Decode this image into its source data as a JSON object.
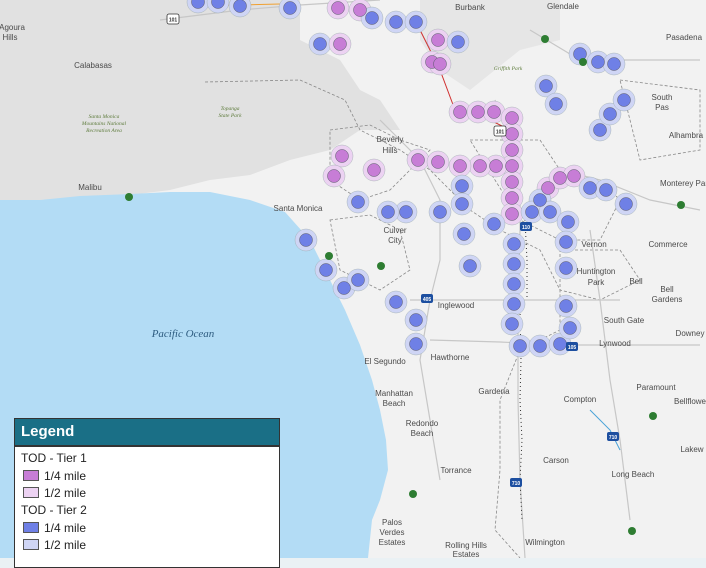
{
  "map": {
    "places": [
      {
        "id": "burbank",
        "text": "Burbank"
      },
      {
        "id": "glendale",
        "text": "Glendale"
      },
      {
        "id": "pasadena",
        "text": "Pasadena"
      },
      {
        "id": "agoura",
        "text": "Agoura"
      },
      {
        "id": "hills",
        "text": "Hills"
      },
      {
        "id": "calabasas",
        "text": "Calabasas"
      },
      {
        "id": "malibu",
        "text": "Malibu"
      },
      {
        "id": "beverly",
        "text": "Beverly"
      },
      {
        "id": "hills2",
        "text": "Hills"
      },
      {
        "id": "santamonica",
        "text": "Santa Monica"
      },
      {
        "id": "culver",
        "text": "Culver"
      },
      {
        "id": "city",
        "text": "City"
      },
      {
        "id": "southpas1",
        "text": "South"
      },
      {
        "id": "southpas2",
        "text": "Pas"
      },
      {
        "id": "alhambra",
        "text": "Alhambra"
      },
      {
        "id": "montereypark",
        "text": "Monterey Park"
      },
      {
        "id": "vernon",
        "text": "Vernon"
      },
      {
        "id": "commerce",
        "text": "Commerce"
      },
      {
        "id": "huntington",
        "text": "Huntington"
      },
      {
        "id": "park",
        "text": "Park"
      },
      {
        "id": "bell",
        "text": "Bell"
      },
      {
        "id": "bellgardens1",
        "text": "Bell"
      },
      {
        "id": "bellgardens2",
        "text": "Gardens"
      },
      {
        "id": "inglewood",
        "text": "Inglewood"
      },
      {
        "id": "southgate",
        "text": "South Gate"
      },
      {
        "id": "downey",
        "text": "Downey"
      },
      {
        "id": "lynwood",
        "text": "Lynwood"
      },
      {
        "id": "hawthorne",
        "text": "Hawthorne"
      },
      {
        "id": "elsegundo",
        "text": "El Segundo"
      },
      {
        "id": "manhattan",
        "text": "Manhattan"
      },
      {
        "id": "beach",
        "text": "Beach"
      },
      {
        "id": "gardena",
        "text": "Gardena"
      },
      {
        "id": "paramount",
        "text": "Paramount"
      },
      {
        "id": "bellflower",
        "text": "Bellflowe"
      },
      {
        "id": "compton",
        "text": "Compton"
      },
      {
        "id": "redondo",
        "text": "Redondo"
      },
      {
        "id": "beach2",
        "text": "Beach"
      },
      {
        "id": "carson",
        "text": "Carson"
      },
      {
        "id": "torrance",
        "text": "Torrance"
      },
      {
        "id": "longbeach",
        "text": "Long Beach"
      },
      {
        "id": "lakewood",
        "text": "Lakew"
      },
      {
        "id": "palos1",
        "text": "Palos"
      },
      {
        "id": "palos2",
        "text": "Verdes"
      },
      {
        "id": "palos3",
        "text": "Estates"
      },
      {
        "id": "rolling1",
        "text": "Rolling Hills"
      },
      {
        "id": "rolling2",
        "text": "Estates"
      },
      {
        "id": "wilmington",
        "text": "Wilmington"
      }
    ],
    "parks": [
      {
        "id": "santamonicamtns1",
        "text": "Santa Monica"
      },
      {
        "id": "santamonicamtns2",
        "text": "Mountains National"
      },
      {
        "id": "santamonicamtns3",
        "text": "Recreation Area"
      },
      {
        "id": "topanga1",
        "text": "Topanga"
      },
      {
        "id": "topanga2",
        "text": "State Park"
      },
      {
        "id": "griffith",
        "text": "Griffith Park"
      }
    ],
    "water": {
      "ocean": "Pacific Ocean"
    },
    "shields": [
      {
        "id": "us101a",
        "text": "101"
      },
      {
        "id": "us101b",
        "text": "101"
      },
      {
        "id": "i405",
        "text": "405"
      },
      {
        "id": "i110",
        "text": "110"
      },
      {
        "id": "i105",
        "text": "105"
      },
      {
        "id": "i710",
        "text": "710"
      },
      {
        "id": "i710b",
        "text": "710"
      }
    ],
    "colors": {
      "land": "#f2f2f2",
      "water": "#b3dcf5",
      "mountains": "#e1e1e1",
      "tier1": "#c77dd6",
      "tier1_half": "#ecd2f2",
      "tier2": "#6f80e6",
      "tier2_half": "#cfd5f5"
    }
  },
  "legend": {
    "title": "Legend",
    "tier1_label": "TOD - Tier 1",
    "tier1_quarter": "1/4 mile",
    "tier1_half": "1/2 mile",
    "tier2_label": "TOD - Tier 2",
    "tier2_quarter": "1/4 mile",
    "tier2_half": "1/2 mile"
  }
}
